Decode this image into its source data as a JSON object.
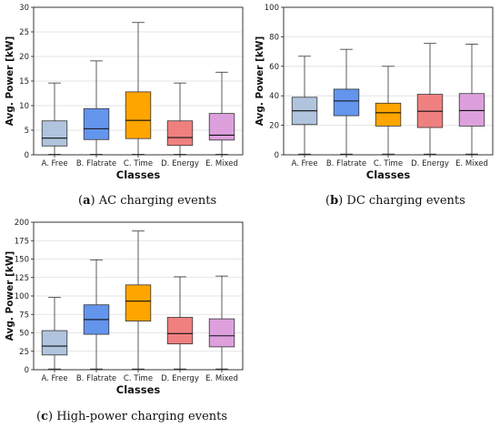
{
  "chart_data": [
    {
      "type": "box",
      "categories": [
        "A. Free",
        "B. Flatrate",
        "C. Time",
        "D. Energy",
        "E. Mixed"
      ],
      "colors": [
        "#b0c4de",
        "#6495ed",
        "#ffa500",
        "#f08080",
        "#dda0dd"
      ],
      "ylabel": "Avg. Power [kW]",
      "xlabel": "Classes",
      "ylim": [
        0,
        30
      ],
      "yticks": [
        0,
        5,
        10,
        15,
        20,
        25,
        30
      ],
      "grid": true,
      "boxes": [
        {
          "whislo": 0.1,
          "q1": 1.8,
          "med": 3.4,
          "q3": 6.9,
          "whishi": 14.6
        },
        {
          "whislo": 0.1,
          "q1": 3.1,
          "med": 5.3,
          "q3": 9.4,
          "whishi": 19.1
        },
        {
          "whislo": 0.1,
          "q1": 3.3,
          "med": 7.0,
          "q3": 12.8,
          "whishi": 26.9
        },
        {
          "whislo": 0.1,
          "q1": 1.9,
          "med": 3.5,
          "q3": 6.9,
          "whishi": 14.6
        },
        {
          "whislo": 0.1,
          "q1": 3.0,
          "med": 4.0,
          "q3": 8.4,
          "whishi": 16.8
        }
      ],
      "caption": {
        "label": "a",
        "text": "AC charging events"
      }
    },
    {
      "type": "box",
      "categories": [
        "A. Free",
        "B. Flatrate",
        "C. Time",
        "D. Energy",
        "E. Mixed"
      ],
      "colors": [
        "#b0c4de",
        "#6495ed",
        "#ffa500",
        "#f08080",
        "#dda0dd"
      ],
      "ylabel": "Avg. Power [kW]",
      "xlabel": "Classes",
      "ylim": [
        0,
        100
      ],
      "yticks": [
        0,
        20,
        40,
        60,
        80,
        100
      ],
      "grid": true,
      "boxes": [
        {
          "whislo": 0.5,
          "q1": 20.5,
          "med": 29.8,
          "q3": 39.0,
          "whishi": 66.8
        },
        {
          "whislo": 0.5,
          "q1": 26.5,
          "med": 36.5,
          "q3": 44.5,
          "whishi": 71.5
        },
        {
          "whislo": 0.5,
          "q1": 19.5,
          "med": 28.5,
          "q3": 35.0,
          "whishi": 60.0
        },
        {
          "whislo": 0.5,
          "q1": 18.5,
          "med": 29.5,
          "q3": 41.0,
          "whishi": 75.5
        },
        {
          "whislo": 0.5,
          "q1": 19.5,
          "med": 30.0,
          "q3": 41.5,
          "whishi": 75.0
        }
      ],
      "caption": {
        "label": "b",
        "text": "DC charging events"
      }
    },
    {
      "type": "box",
      "categories": [
        "A. Free",
        "B. Flatrate",
        "C. Time",
        "D. Energy",
        "E. Mixed"
      ],
      "colors": [
        "#b0c4de",
        "#6495ed",
        "#ffa500",
        "#f08080",
        "#dda0dd"
      ],
      "ylabel": "Avg. Power [kW]",
      "xlabel": "Classes",
      "ylim": [
        0,
        200
      ],
      "yticks": [
        0,
        25,
        50,
        75,
        100,
        125,
        150,
        175,
        200
      ],
      "grid": true,
      "boxes": [
        {
          "whislo": 1,
          "q1": 20,
          "med": 32,
          "q3": 53,
          "whishi": 98
        },
        {
          "whislo": 1,
          "q1": 48,
          "med": 68,
          "q3": 88,
          "whishi": 149
        },
        {
          "whislo": 1,
          "q1": 66,
          "med": 93,
          "q3": 115,
          "whishi": 188
        },
        {
          "whislo": 1,
          "q1": 35,
          "med": 49,
          "q3": 71,
          "whishi": 126
        },
        {
          "whislo": 1,
          "q1": 31,
          "med": 46,
          "q3": 69,
          "whishi": 127
        }
      ],
      "caption": {
        "label": "c",
        "text": "High-power charging events"
      }
    }
  ]
}
